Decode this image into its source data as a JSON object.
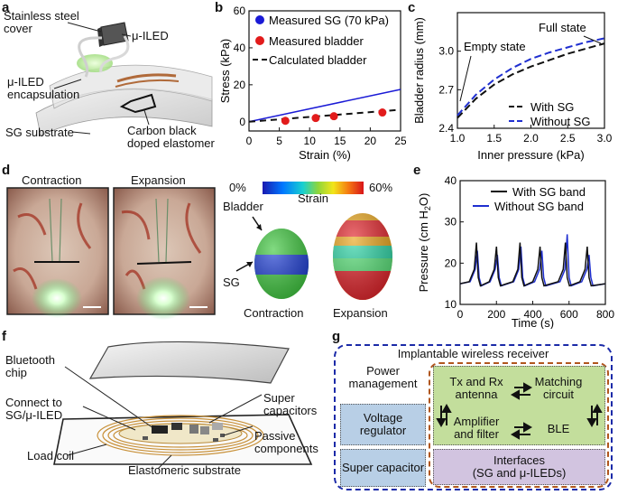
{
  "panels": {
    "a": "a",
    "b": "b",
    "c": "c",
    "d": "d",
    "e": "e",
    "f": "f",
    "g": "g"
  },
  "panel_a": {
    "labels": [
      "Stainless steel cover",
      "μ-ILED",
      "μ-ILED encapsulation",
      "SG substrate",
      "Carbon black doped elastomer"
    ]
  },
  "colors": {
    "blue": "#1a1ad6",
    "red": "#e21b1b",
    "dash_blue": "#1f2fd0",
    "navy": "#1b2aa8",
    "orange": "#b0561e"
  },
  "chart_b": {
    "type": "line+scatter",
    "xlabel": "Strain (%)",
    "ylabel": "Stress (kPa)",
    "xlim": [
      0,
      25
    ],
    "ylim": [
      -5,
      60
    ],
    "xticks": [
      0,
      5,
      10,
      15,
      20,
      25
    ],
    "yticks": [
      0,
      20,
      40,
      60
    ],
    "legend": [
      "Measured SG (70 kPa)",
      "Measured bladder",
      "Calculated bladder"
    ],
    "sg_line": {
      "x": [
        0,
        25
      ],
      "y": [
        0,
        17.5
      ]
    },
    "bladder_points": {
      "x": [
        6,
        11,
        14,
        22
      ],
      "y": [
        0.5,
        2,
        3,
        5
      ]
    },
    "bladder_calc": {
      "x": [
        0,
        25
      ],
      "y": [
        0,
        6.5
      ]
    }
  },
  "chart_c": {
    "type": "line",
    "xlabel": "Inner pressure (kPa)",
    "ylabel": "Bladder radius (mm)",
    "xlim": [
      1.0,
      3.0
    ],
    "ylim": [
      2.4,
      3.3
    ],
    "xticks": [
      "1.0",
      "1.5",
      "2.0",
      "2.5",
      "3.0"
    ],
    "yticks": [
      "2.4",
      "2.7",
      "3.0"
    ],
    "legend": [
      "With SG",
      "Without SG"
    ],
    "annotations": [
      "Full state",
      "Empty state"
    ],
    "series": [
      {
        "name": "With SG",
        "x": [
          1.0,
          1.25,
          1.5,
          1.75,
          2.0,
          2.25,
          2.5,
          2.75,
          3.0
        ],
        "y": [
          2.48,
          2.63,
          2.74,
          2.82,
          2.88,
          2.93,
          2.98,
          3.02,
          3.06
        ]
      },
      {
        "name": "Without SG",
        "x": [
          1.0,
          1.25,
          1.5,
          1.75,
          2.0,
          2.25,
          2.5,
          2.75,
          3.0
        ],
        "y": [
          2.5,
          2.66,
          2.78,
          2.87,
          2.94,
          2.99,
          3.03,
          3.07,
          3.1
        ]
      }
    ]
  },
  "panel_d": {
    "photo_labels": [
      "Contraction",
      "Expansion"
    ],
    "colorbar": {
      "min": "0%",
      "max": "60%",
      "label": "Strain"
    },
    "model_labels": {
      "bladder": "Bladder",
      "sg": "SG",
      "contraction": "Contraction",
      "expansion": "Expansion"
    }
  },
  "chart_e": {
    "type": "line",
    "xlabel": "Time (s)",
    "ylabel": "Pressure (cm H",
    "ylabel_sub": "2",
    "ylabel_end": "O)",
    "xlim": [
      0,
      800
    ],
    "ylim": [
      10,
      40
    ],
    "xticks": [
      0,
      200,
      400,
      600,
      800
    ],
    "yticks": [
      10,
      20,
      30,
      40
    ],
    "legend": [
      "With SG band",
      "Without SG band"
    ],
    "peaks_with": [
      {
        "t": 90,
        "p": 25
      },
      {
        "t": 200,
        "p": 24
      },
      {
        "t": 330,
        "p": 25
      },
      {
        "t": 440,
        "p": 24
      },
      {
        "t": 580,
        "p": 25
      },
      {
        "t": 700,
        "p": 24
      }
    ],
    "peaks_without": [
      {
        "t": 95,
        "p": 23
      },
      {
        "t": 205,
        "p": 22
      },
      {
        "t": 335,
        "p": 24
      },
      {
        "t": 450,
        "p": 23
      },
      {
        "t": 590,
        "p": 27
      },
      {
        "t": 710,
        "p": 22
      }
    ]
  },
  "panel_f": {
    "labels": [
      "Bluetooth chip",
      "Connect to SG/μ-ILED",
      "Load coil",
      "Super capacitors",
      "Passive components",
      "Elastomeric substrate"
    ]
  },
  "panel_g": {
    "title": "Implantable wireless receiver",
    "power_management": "Power management",
    "voltage_regulator": "Voltage regulator",
    "super_capacitor": "Super capacitor",
    "tx_rx": "Tx and Rx antenna",
    "matching": "Matching circuit",
    "amplifier": "Amplifier and filter",
    "ble": "BLE",
    "interfaces_1": "Interfaces",
    "interfaces_2": "(SG and μ-ILEDs)"
  }
}
